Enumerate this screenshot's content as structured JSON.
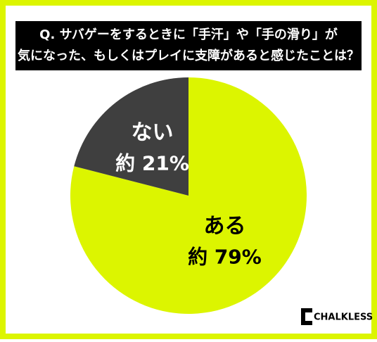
{
  "chart_data": {
    "type": "pie",
    "title": [
      "Q. サバゲーをするときに「手汗」や「手の滑り」が",
      "気になった、もしくはプレイに支障があると感じたことは？"
    ],
    "categories": [
      "ある",
      "ない"
    ],
    "values": [
      79,
      21
    ],
    "value_labels": [
      "約 79%",
      "約 21%"
    ],
    "colors": [
      "#dcf500",
      "#3f3f3f"
    ]
  },
  "logo": "CHALKLESS"
}
